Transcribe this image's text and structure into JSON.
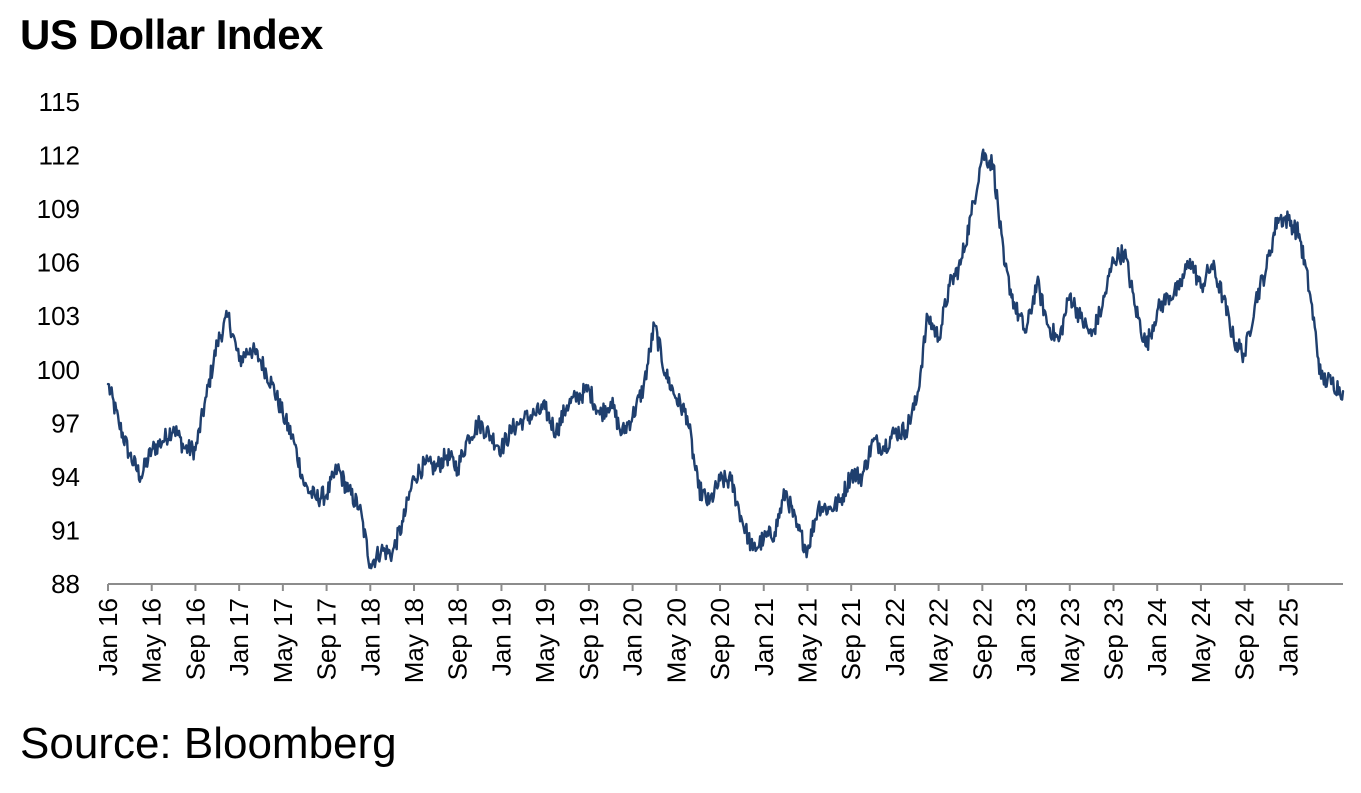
{
  "chart_data": {
    "type": "line",
    "title": "US Dollar Index",
    "source": "Source: Bloomberg",
    "xlabel": "",
    "ylabel": "",
    "ylim": [
      88,
      115
    ],
    "y_ticks": [
      115,
      112,
      109,
      106,
      103,
      100,
      97,
      94,
      91,
      88
    ],
    "x_start": "Jan 16",
    "x_end": "Jun 25",
    "grid": false,
    "legend": "none",
    "line_color": "#1f3f6e",
    "x_ticks": [
      "Jan 16",
      "May 16",
      "Sep 16",
      "Jan 17",
      "May 17",
      "Sep 17",
      "Jan 18",
      "May 18",
      "Sep 18",
      "Jan 19",
      "May 19",
      "Sep 19",
      "Jan 20",
      "May 20",
      "Sep 20",
      "Jan 21",
      "May 21",
      "Sep 21",
      "Jan 22",
      "May 22",
      "Sep 22",
      "Jan 23",
      "May 23",
      "Sep 23",
      "Jan 24",
      "May 24",
      "Sep 24",
      "Jan 25"
    ],
    "series": [
      {
        "name": "US Dollar Index",
        "x": [
          "2016-01",
          "2016-02",
          "2016-03",
          "2016-04",
          "2016-05",
          "2016-06",
          "2016-07",
          "2016-08",
          "2016-09",
          "2016-10",
          "2016-11",
          "2016-12",
          "2017-01",
          "2017-02",
          "2017-03",
          "2017-04",
          "2017-05",
          "2017-06",
          "2017-07",
          "2017-08",
          "2017-09",
          "2017-10",
          "2017-11",
          "2017-12",
          "2018-01",
          "2018-02",
          "2018-03",
          "2018-04",
          "2018-05",
          "2018-06",
          "2018-07",
          "2018-08",
          "2018-09",
          "2018-10",
          "2018-11",
          "2018-12",
          "2019-01",
          "2019-02",
          "2019-03",
          "2019-04",
          "2019-05",
          "2019-06",
          "2019-07",
          "2019-08",
          "2019-09",
          "2019-10",
          "2019-11",
          "2019-12",
          "2020-01",
          "2020-02",
          "2020-03",
          "2020-04",
          "2020-05",
          "2020-06",
          "2020-07",
          "2020-08",
          "2020-09",
          "2020-10",
          "2020-11",
          "2020-12",
          "2021-01",
          "2021-02",
          "2021-03",
          "2021-04",
          "2021-05",
          "2021-06",
          "2021-07",
          "2021-08",
          "2021-09",
          "2021-10",
          "2021-11",
          "2021-12",
          "2022-01",
          "2022-02",
          "2022-03",
          "2022-04",
          "2022-05",
          "2022-06",
          "2022-07",
          "2022-08",
          "2022-09",
          "2022-10",
          "2022-11",
          "2022-12",
          "2023-01",
          "2023-02",
          "2023-03",
          "2023-04",
          "2023-05",
          "2023-06",
          "2023-07",
          "2023-08",
          "2023-09",
          "2023-10",
          "2023-11",
          "2023-12",
          "2024-01",
          "2024-02",
          "2024-03",
          "2024-04",
          "2024-05",
          "2024-06",
          "2024-07",
          "2024-08",
          "2024-09",
          "2024-10",
          "2024-11",
          "2024-12",
          "2025-01",
          "2025-02",
          "2025-03",
          "2025-04",
          "2025-05",
          "2025-06"
        ],
        "values": [
          99.2,
          97.0,
          95.2,
          94.0,
          95.5,
          96.0,
          96.8,
          95.6,
          95.5,
          98.5,
          101.5,
          103.0,
          100.5,
          101.2,
          100.5,
          99.2,
          97.5,
          96.0,
          93.5,
          92.8,
          93.0,
          94.5,
          93.2,
          92.3,
          89.1,
          89.9,
          89.7,
          91.5,
          94.0,
          94.7,
          94.5,
          95.2,
          94.5,
          96.3,
          97.0,
          96.3,
          95.6,
          96.7,
          97.2,
          97.5,
          97.8,
          96.5,
          98.0,
          98.5,
          98.9,
          97.5,
          98.2,
          96.4,
          97.4,
          99.0,
          102.5,
          99.8,
          98.4,
          97.4,
          93.4,
          92.5,
          93.8,
          93.8,
          91.6,
          89.9,
          90.5,
          90.9,
          93.2,
          91.2,
          89.9,
          92.4,
          92.2,
          92.6,
          94.2,
          94.0,
          96.0,
          95.7,
          96.5,
          96.6,
          98.3,
          103.0,
          101.8,
          104.7,
          105.9,
          108.7,
          112.1,
          111.5,
          105.9,
          103.5,
          102.1,
          104.9,
          102.5,
          101.6,
          104.2,
          102.9,
          101.9,
          103.6,
          106.2,
          106.6,
          103.5,
          101.3,
          103.3,
          104.1,
          104.5,
          106.2,
          104.6,
          105.9,
          104.1,
          101.7,
          100.8,
          103.9,
          105.7,
          108.5,
          108.4,
          107.6,
          104.2,
          99.5,
          99.3,
          98.8
        ]
      }
    ]
  }
}
